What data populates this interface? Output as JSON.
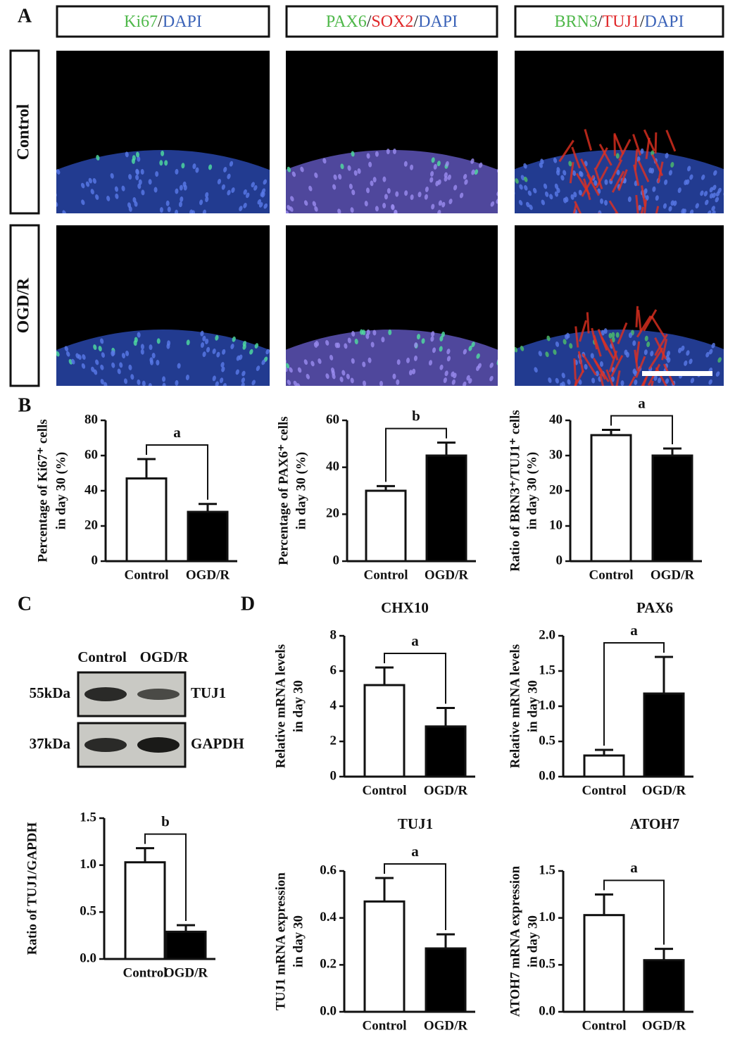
{
  "panel_labels": [
    "A",
    "B",
    "C",
    "D"
  ],
  "microscopy": {
    "headers": [
      [
        {
          "text": "Ki67",
          "color": "#4fb84a"
        },
        {
          "text": "/",
          "color": "#222222"
        },
        {
          "text": "DAPI",
          "color": "#3b63b8"
        }
      ],
      [
        {
          "text": "PAX6",
          "color": "#4fb84a"
        },
        {
          "text": "/",
          "color": "#222222"
        },
        {
          "text": "SOX2",
          "color": "#e0282a"
        },
        {
          "text": "/",
          "color": "#222222"
        },
        {
          "text": "DAPI",
          "color": "#3b63b8"
        }
      ],
      [
        {
          "text": "BRN3",
          "color": "#4fb84a"
        },
        {
          "text": "/",
          "color": "#222222"
        },
        {
          "text": "TUJ1",
          "color": "#e0282a"
        },
        {
          "text": "/",
          "color": "#222222"
        },
        {
          "text": "DAPI",
          "color": "#3b63b8"
        }
      ]
    ],
    "rows": [
      "Control",
      "OGD/R"
    ]
  },
  "blot": {
    "lanes": [
      "Control",
      "OGD/R"
    ],
    "bands": [
      {
        "size": "55kDa",
        "protein": "TUJ1"
      },
      {
        "size": "37kDa",
        "protein": "GAPDH"
      }
    ]
  },
  "chart_data": [
    {
      "type": "bar",
      "ylabel": [
        "Percentage of Ki67⁺ cells",
        "in day 30 (%)"
      ],
      "categories": [
        "Control",
        "OGD/R"
      ],
      "values": [
        47,
        28
      ],
      "errors": [
        11,
        4.5
      ],
      "colors": [
        "#ffffff",
        "#000000"
      ],
      "ylim": [
        0,
        80
      ],
      "yticks": [
        0,
        20,
        40,
        60,
        80
      ],
      "significance": "a"
    },
    {
      "type": "bar",
      "ylabel": [
        "Percentage of PAX6⁺ cells",
        "in day 30 (%)"
      ],
      "categories": [
        "Control",
        "OGD/R"
      ],
      "values": [
        30,
        45
      ],
      "errors": [
        2,
        5.5
      ],
      "colors": [
        "#ffffff",
        "#000000"
      ],
      "ylim": [
        0,
        60
      ],
      "yticks": [
        0,
        20,
        40,
        60
      ],
      "significance": "b"
    },
    {
      "type": "bar",
      "ylabel": [
        "Ratio of BRN3⁺/TUJ1⁺ cells",
        "in day 30 (%)"
      ],
      "categories": [
        "Control",
        "OGD/R"
      ],
      "values": [
        35.8,
        30
      ],
      "errors": [
        1.5,
        2
      ],
      "colors": [
        "#ffffff",
        "#000000"
      ],
      "ylim": [
        0,
        40
      ],
      "yticks": [
        0,
        10,
        20,
        30,
        40
      ],
      "significance": "a"
    },
    {
      "type": "bar",
      "ylabel": [
        "Ratio of  TUJ1/GAPDH"
      ],
      "categories": [
        "Control",
        "OGD/R"
      ],
      "values": [
        1.03,
        0.29
      ],
      "errors": [
        0.15,
        0.07
      ],
      "colors": [
        "#ffffff",
        "#000000"
      ],
      "ylim": [
        0,
        1.5
      ],
      "yticks": [
        {
          "value": 0,
          "label": "0.0"
        },
        {
          "value": 0.5,
          "label": "0.5"
        },
        {
          "value": 1,
          "label": "1.0"
        },
        {
          "value": 1.5,
          "label": "1.5"
        }
      ],
      "significance": "b"
    },
    {
      "type": "bar",
      "title": "CHX10",
      "ylabel": [
        "Relative mRNA levels",
        "in day 30"
      ],
      "categories": [
        "Control",
        "OGD/R"
      ],
      "values": [
        5.2,
        2.85
      ],
      "errors": [
        1,
        1.05
      ],
      "colors": [
        "#ffffff",
        "#000000"
      ],
      "ylim": [
        0,
        8
      ],
      "yticks": [
        0,
        2,
        4,
        6,
        8
      ],
      "significance": "a"
    },
    {
      "type": "bar",
      "title": "PAX6",
      "ylabel": [
        "Relative mRNA levels",
        "in day 30"
      ],
      "categories": [
        "Control",
        "OGD/R"
      ],
      "values": [
        0.3,
        1.18
      ],
      "errors": [
        0.08,
        0.52
      ],
      "colors": [
        "#ffffff",
        "#000000"
      ],
      "ylim": [
        0,
        2
      ],
      "yticks": [
        {
          "value": 0,
          "label": "0.0"
        },
        {
          "value": 0.5,
          "label": "0.5"
        },
        {
          "value": 1,
          "label": "1.0"
        },
        {
          "value": 1.5,
          "label": "1.5"
        },
        {
          "value": 2,
          "label": "2.0"
        }
      ],
      "significance": "a"
    },
    {
      "type": "bar",
      "title": "TUJ1",
      "ylabel": [
        "TUJ1 mRNA expression",
        "in day 30"
      ],
      "categories": [
        "Control",
        "OGD/R"
      ],
      "values": [
        0.47,
        0.27
      ],
      "errors": [
        0.1,
        0.06
      ],
      "colors": [
        "#ffffff",
        "#000000"
      ],
      "ylim": [
        0,
        0.6
      ],
      "yticks": [
        {
          "value": 0,
          "label": "0.0"
        },
        {
          "value": 0.2,
          "label": "0.2"
        },
        {
          "value": 0.4,
          "label": "0.4"
        },
        {
          "value": 0.6,
          "label": "0.6"
        }
      ],
      "significance": "a"
    },
    {
      "type": "bar",
      "title": "ATOH7",
      "ylabel": [
        "ATOH7 mRNA expression",
        "in day 30"
      ],
      "categories": [
        "Control",
        "OGD/R"
      ],
      "values": [
        1.03,
        0.55
      ],
      "errors": [
        0.22,
        0.12
      ],
      "colors": [
        "#ffffff",
        "#000000"
      ],
      "ylim": [
        0,
        1.5
      ],
      "yticks": [
        {
          "value": 0,
          "label": "0.0"
        },
        {
          "value": 0.5,
          "label": "0.5"
        },
        {
          "value": 1,
          "label": "1.0"
        },
        {
          "value": 1.5,
          "label": "1.5"
        }
      ],
      "significance": "a"
    }
  ]
}
